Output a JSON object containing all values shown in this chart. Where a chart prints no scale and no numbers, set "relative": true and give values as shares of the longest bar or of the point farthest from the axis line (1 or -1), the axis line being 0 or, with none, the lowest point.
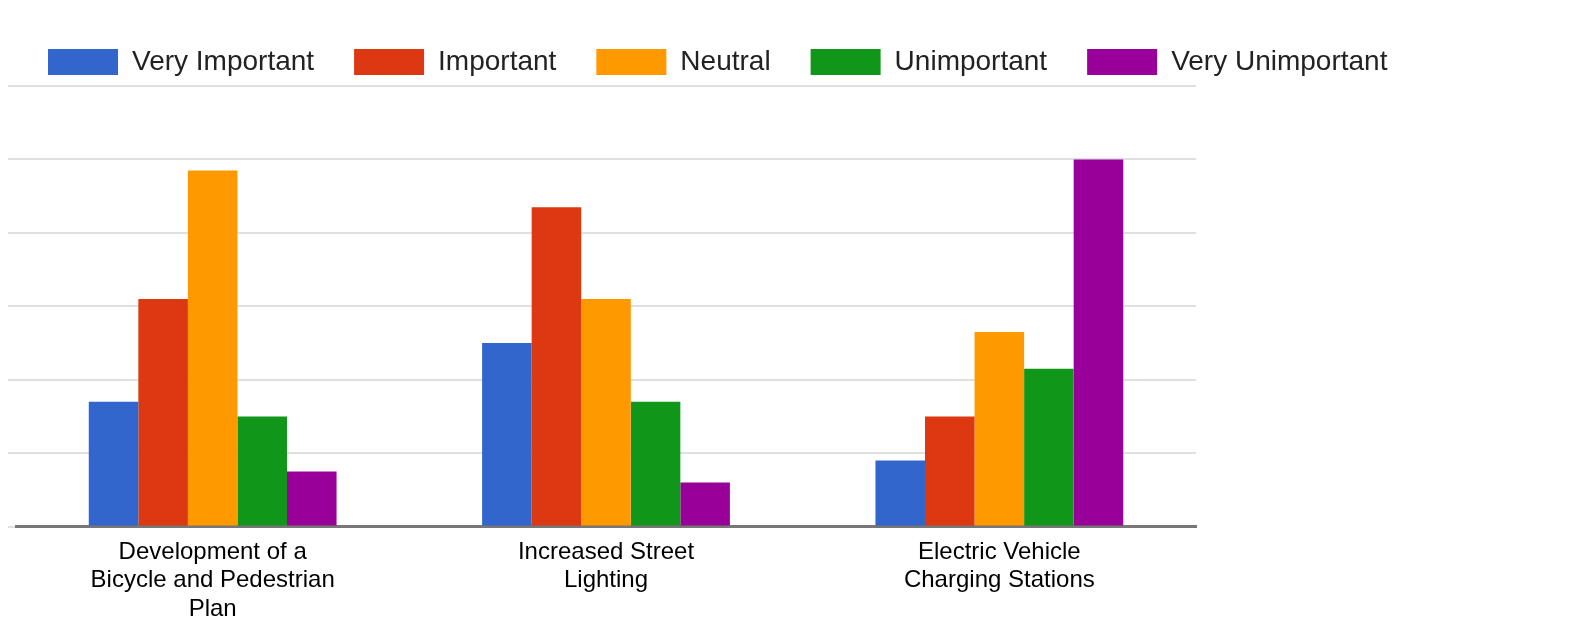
{
  "chart_data": {
    "type": "bar",
    "relative": true,
    "categories": [
      "Development of a Bicycle and Pedestrian Plan",
      "Increased Street Lighting",
      "Electric Vehicle Charging Stations"
    ],
    "series": [
      {
        "name": "Very Important",
        "color": "#3366cc",
        "values": [
          0.34,
          0.5,
          0.18
        ]
      },
      {
        "name": "Important",
        "color": "#dc3912",
        "values": [
          0.62,
          0.87,
          0.3
        ]
      },
      {
        "name": "Neutral",
        "color": "#ff9900",
        "values": [
          0.97,
          0.62,
          0.53
        ]
      },
      {
        "name": "Unimportant",
        "color": "#109618",
        "values": [
          0.3,
          0.34,
          0.43
        ]
      },
      {
        "name": "Very Unimportant",
        "color": "#990099",
        "values": [
          0.15,
          0.12,
          1.0
        ]
      }
    ],
    "grid": "y",
    "legend": "top"
  }
}
